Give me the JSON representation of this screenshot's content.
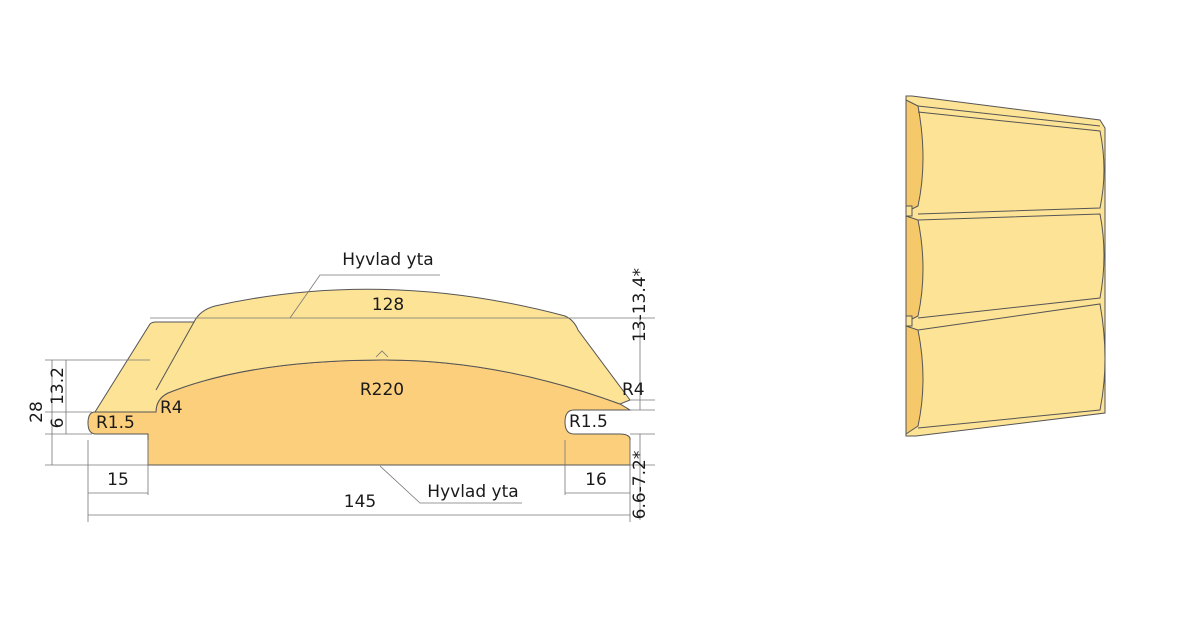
{
  "profile": {
    "surface_top": "Hyvlad yta",
    "width_top": "128",
    "crown_height": "13-13.4*",
    "radius_crown": "R220",
    "radius_left": "R4",
    "radius_right": "R4",
    "radius_groove_left": "R1.5",
    "radius_groove_right": "R1.5",
    "total_height": "28",
    "tongue_height": "13.2",
    "groove_height": "6",
    "left_width": "15",
    "right_width": "16",
    "total_width": "145",
    "bottom_depth": "6.6-7.2*",
    "surface_bottom": "Hyvlad yta"
  }
}
